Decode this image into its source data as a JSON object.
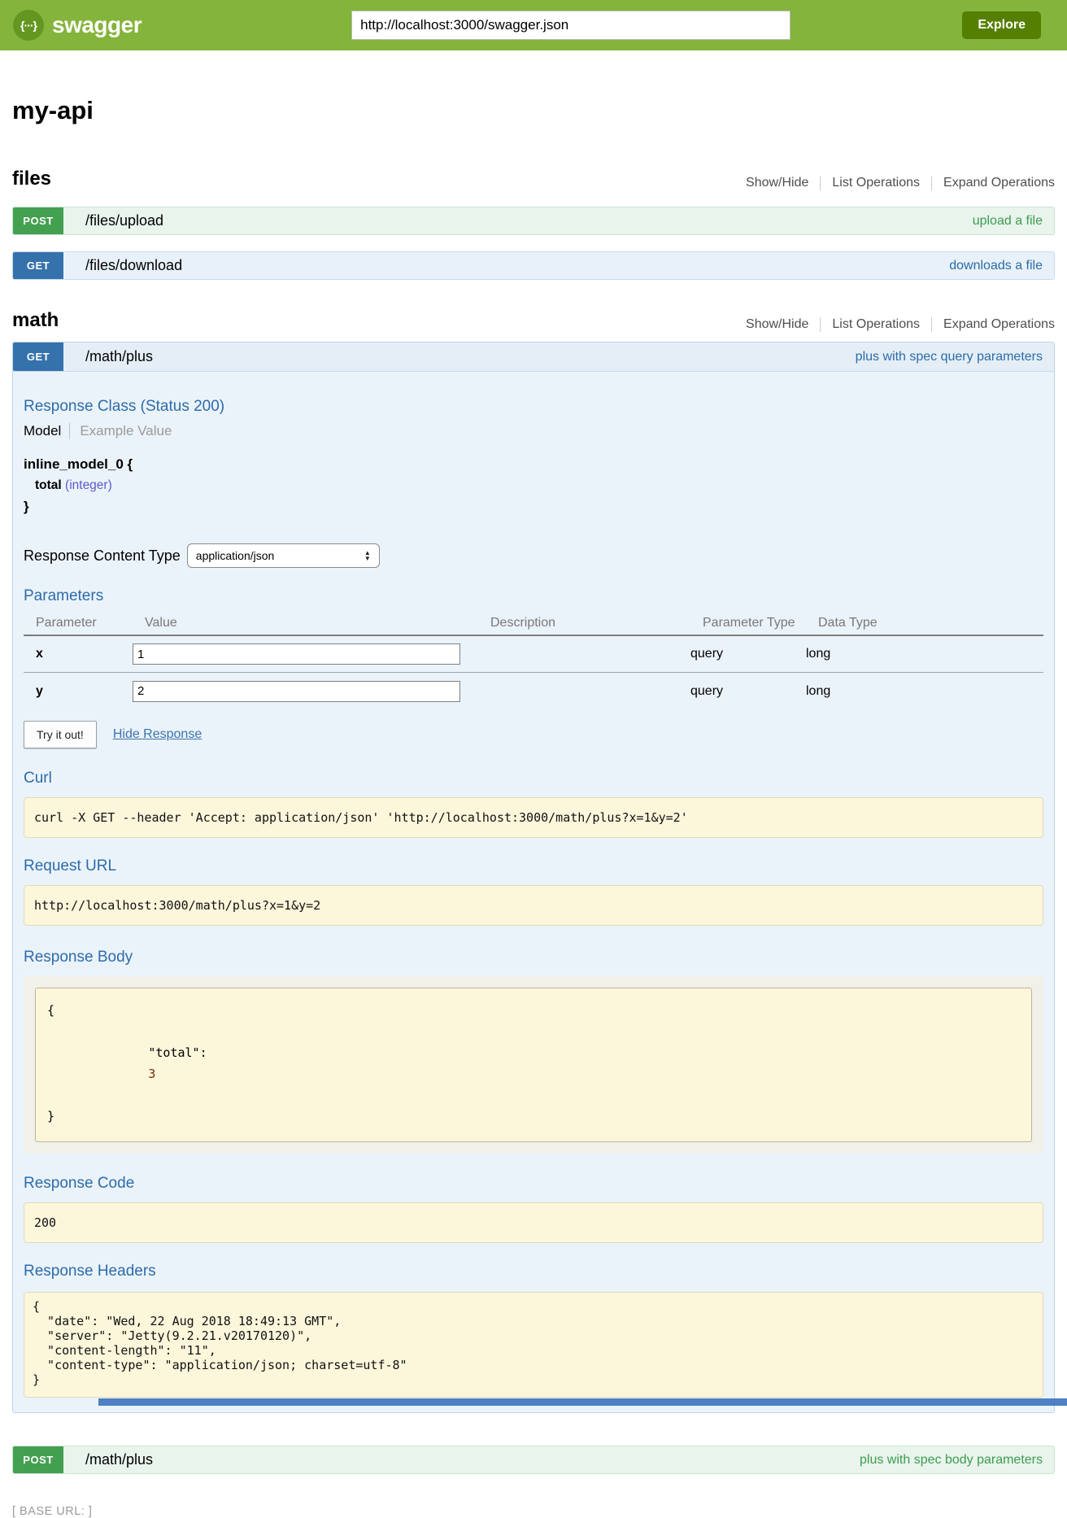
{
  "header": {
    "brand": "swagger",
    "url_input_value": "http://localhost:3000/swagger.json",
    "explore_button": "Explore"
  },
  "icons": {
    "swagger_logo_glyph": "{···}",
    "select_arrow_up": "▲",
    "select_arrow_down": "▼"
  },
  "page": {
    "title": "my-api"
  },
  "controls": {
    "show_hide": "Show/Hide",
    "list_operations": "List Operations",
    "expand_operations": "Expand Operations"
  },
  "files_section": {
    "title": "files",
    "endpoints": [
      {
        "method": "POST",
        "path": "/files/upload",
        "summary": "upload a file"
      },
      {
        "method": "GET",
        "path": "/files/download",
        "summary": "downloads a file"
      }
    ]
  },
  "math_section": {
    "title": "math",
    "get_endpoint": {
      "method": "GET",
      "path": "/math/plus",
      "summary": "plus with spec query parameters"
    },
    "post_endpoint": {
      "method": "POST",
      "path": "/math/plus",
      "summary": "plus with spec body parameters"
    }
  },
  "operation": {
    "response_class": {
      "heading": "Response Class (Status 200)",
      "tabs": {
        "model": "Model",
        "example_value": "Example Value"
      },
      "model": {
        "name": "inline_model_0 {",
        "property": "total",
        "property_type": "(integer)",
        "close": "}"
      }
    },
    "response_content_type": {
      "label": "Response Content Type",
      "selected": "application/json"
    },
    "parameters": {
      "heading": "Parameters",
      "headers": [
        "Parameter",
        "Value",
        "Description",
        "Parameter Type",
        "Data Type"
      ],
      "rows": [
        {
          "name": "x",
          "value": "1",
          "description": "",
          "parameter_type": "query",
          "data_type": "long"
        },
        {
          "name": "y",
          "value": "2",
          "description": "",
          "parameter_type": "query",
          "data_type": "long"
        }
      ]
    },
    "try_it_out": "Try it out!",
    "hide_response": "Hide Response",
    "curl": {
      "heading": "Curl",
      "command": "curl -X GET --header 'Accept: application/json' 'http://localhost:3000/math/plus?x=1&y=2'"
    },
    "request_url": {
      "heading": "Request URL",
      "url": "http://localhost:3000/math/plus?x=1&y=2"
    },
    "response_body": {
      "heading": "Response Body",
      "open": "{",
      "key": "\"total\":",
      "value": "3",
      "close": "}"
    },
    "response_code": {
      "heading": "Response Code",
      "code": "200"
    },
    "response_headers": {
      "heading": "Response Headers",
      "json": "{\n  \"date\": \"Wed, 22 Aug 2018 18:49:13 GMT\",\n  \"server\": \"Jetty(9.2.21.v20170120)\",\n  \"content-length\": \"11\",\n  \"content-type\": \"application/json; charset=utf-8\"\n}"
    }
  },
  "footer": {
    "base_url": "[ BASE URL: ]"
  },
  "colors": {
    "header_green": "#84b43b",
    "accent_dark_green": "#547f00",
    "post_green": "#43a051",
    "get_blue": "#3572ac",
    "heading_blue": "#2c6cab",
    "code_block_cream": "#fcf6db",
    "bottom_bar_blue": "#4d80c4"
  }
}
